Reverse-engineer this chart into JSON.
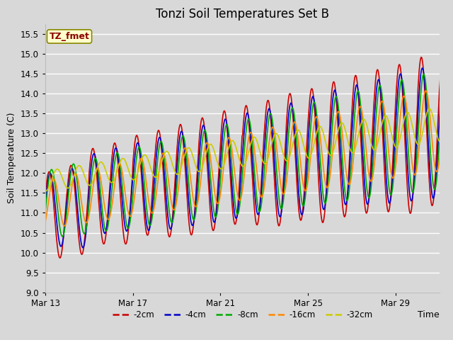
{
  "title": "Tonzi Soil Temperatures Set B",
  "xlabel": "Time",
  "ylabel": "Soil Temperature (C)",
  "legend_label": "TZ_fmet",
  "ylim": [
    9.0,
    15.75
  ],
  "yticks": [
    9.0,
    9.5,
    10.0,
    10.5,
    11.0,
    11.5,
    12.0,
    12.5,
    13.0,
    13.5,
    14.0,
    14.5,
    15.0,
    15.5
  ],
  "fig_bg": "#d8d8d8",
  "plot_bg": "#d8d8d8",
  "series": [
    {
      "label": "-2cm",
      "color": "#cc0000",
      "lw": 1.2
    },
    {
      "label": "-4cm",
      "color": "#0000cc",
      "lw": 1.2
    },
    {
      "label": "-8cm",
      "color": "#00aa00",
      "lw": 1.2
    },
    {
      "label": "-16cm",
      "color": "#ff8800",
      "lw": 1.2
    },
    {
      "label": "-32cm",
      "color": "#cccc00",
      "lw": 1.2
    }
  ],
  "xtick_labels": [
    "Mar 13",
    "Mar 17",
    "Mar 21",
    "Mar 25",
    "Mar 29"
  ],
  "xtick_positions": [
    0,
    4,
    8,
    12,
    16
  ],
  "num_days": 19,
  "pts_per_day": 48
}
